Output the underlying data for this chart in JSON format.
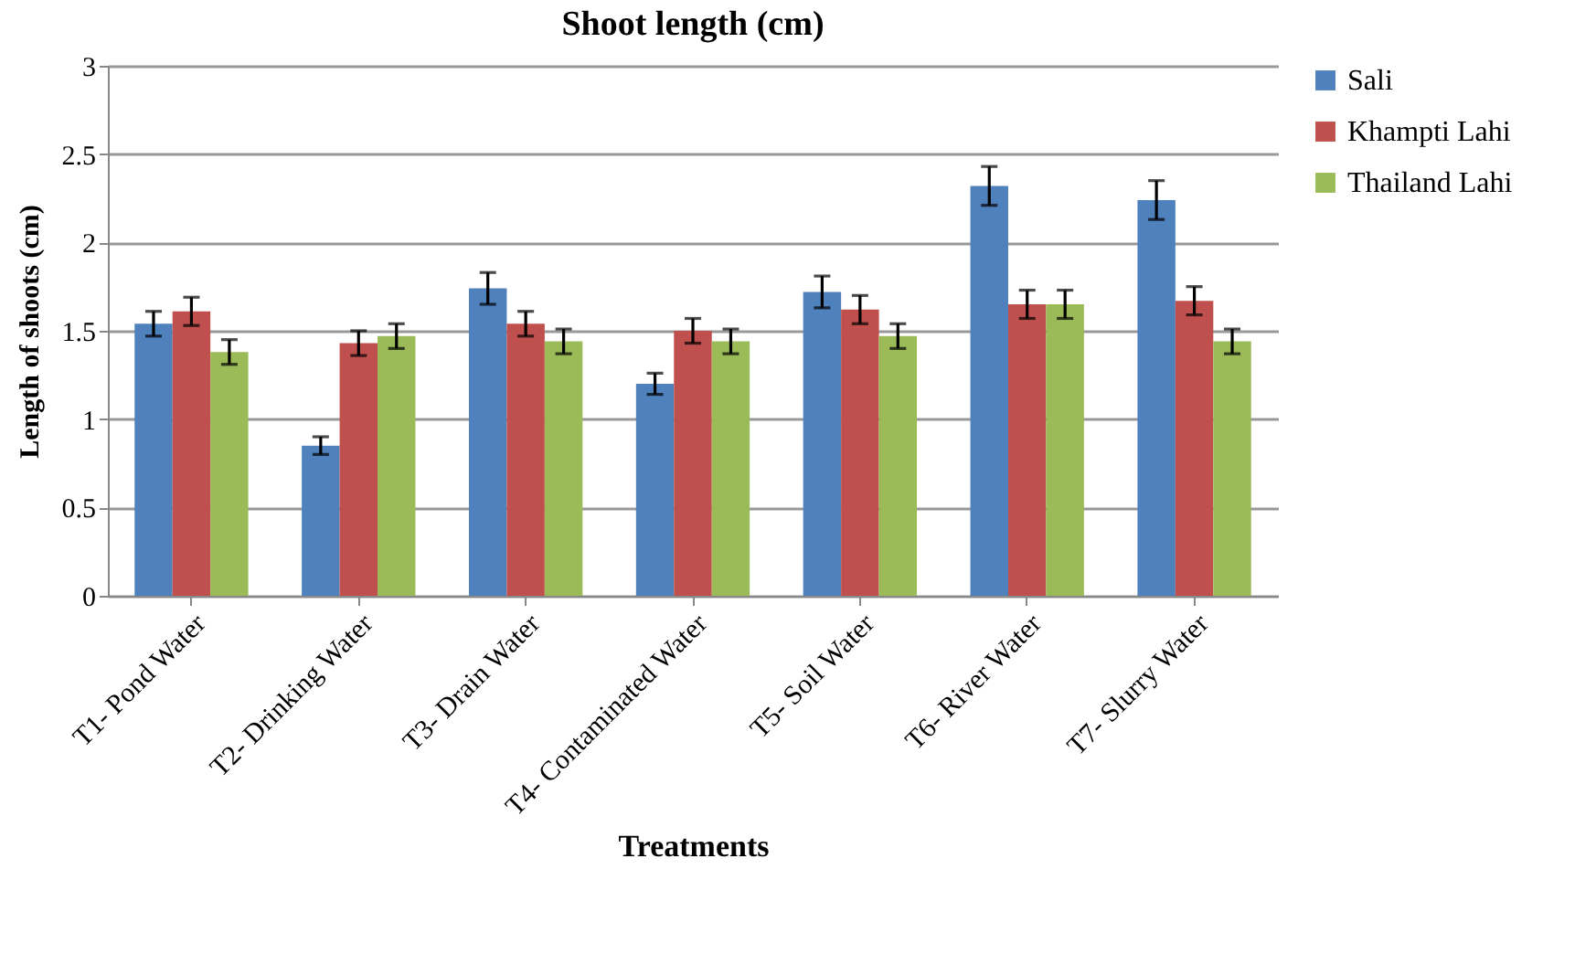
{
  "chart_data": {
    "type": "bar",
    "title": "Shoot length (cm)",
    "xlabel": "Treatments",
    "ylabel": "Length of shoots (cm)",
    "categories": [
      "T1- Pond Water",
      "T2- Drinking Water",
      "T3- Drain Water",
      "T4- Contaminated Water",
      "T5- Soil Water",
      "T6- River Water",
      "T7- Slurry Water"
    ],
    "series": [
      {
        "name": "Sali",
        "color": "#4f81bd",
        "values": [
          1.54,
          0.85,
          1.74,
          1.2,
          1.72,
          2.32,
          2.24
        ],
        "errors": [
          0.07,
          0.05,
          0.09,
          0.06,
          0.09,
          0.11,
          0.11
        ]
      },
      {
        "name": "Khampti Lahi",
        "color": "#c0504d",
        "values": [
          1.61,
          1.43,
          1.54,
          1.5,
          1.62,
          1.65,
          1.67
        ],
        "errors": [
          0.08,
          0.07,
          0.07,
          0.07,
          0.08,
          0.08,
          0.08
        ]
      },
      {
        "name": "Thailand Lahi",
        "color": "#9bbb59",
        "values": [
          1.38,
          1.47,
          1.44,
          1.44,
          1.47,
          1.65,
          1.44
        ],
        "errors": [
          0.07,
          0.07,
          0.07,
          0.07,
          0.07,
          0.08,
          0.07
        ]
      }
    ],
    "ylim": [
      0,
      3
    ],
    "yticks": [
      0,
      0.5,
      1,
      1.5,
      2,
      2.5,
      3
    ],
    "grid": "y",
    "legend": "right"
  }
}
